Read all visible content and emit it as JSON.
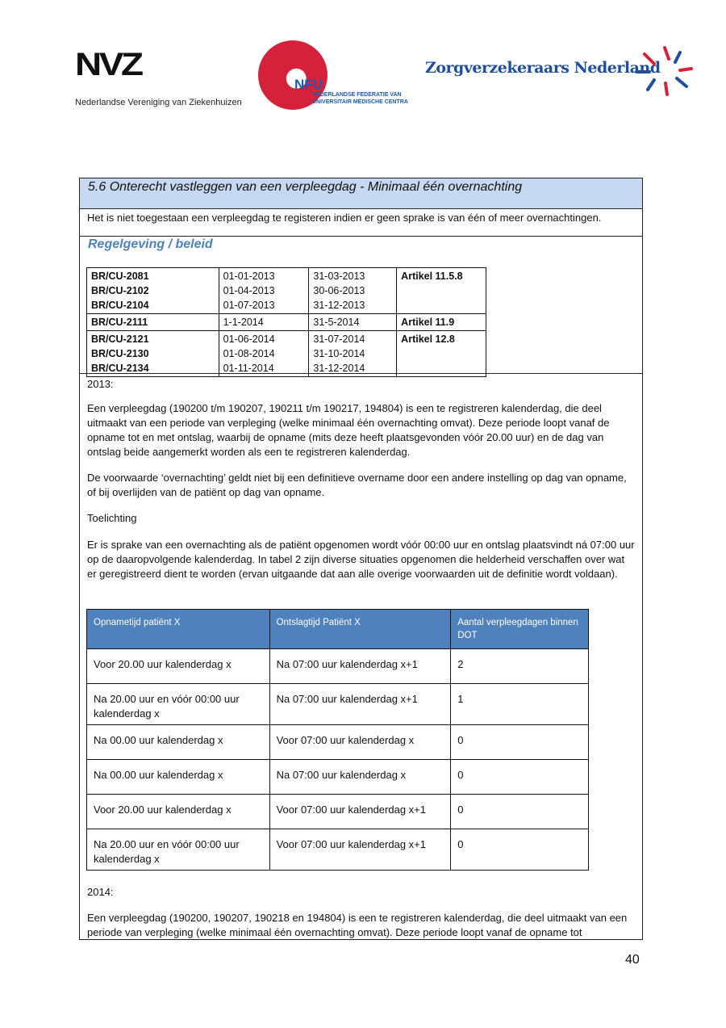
{
  "header": {
    "logos": {
      "nvz": "NVZ",
      "nvz_name": "Nederlandse Vereniging van Ziekenhuizen",
      "nfu": "NFU",
      "nfu_sub1": "NEDERLANDSE FEDERATIE VAN",
      "nfu_sub2": "UNIVERSITAIR MEDISCHE CENTRA",
      "zn": "Zorgverzekeraars Nederland"
    }
  },
  "colors": {
    "title_band": "#c6d9f1",
    "heading_blue": "#4f81bd",
    "table_header": "#4f81bd",
    "nfu_red": "#d5213a"
  },
  "section": {
    "title": "5.6 Onterecht vastleggen van een verpleegdag - Minimaal één overnachting",
    "intro": "Het is niet toegestaan een verpleegdag te registeren indien er geen sprake is van één of meer overnachtingen.",
    "regelgeving_heading": "Regelgeving / beleid",
    "br_rows": [
      {
        "codes": [
          "BR/CU-2081",
          "BR/CU-2102",
          "BR/CU-2104"
        ],
        "start": [
          "01-01-2013",
          "01-04-2013",
          "01-07-2013"
        ],
        "end": [
          "31-03-2013",
          "30-06-2013",
          "31-12-2013"
        ],
        "article": "Artikel 11.5.8"
      },
      {
        "codes": [
          "BR/CU-2111"
        ],
        "start": [
          "1-1-2014"
        ],
        "end": [
          "31-5-2014"
        ],
        "article": "Artikel 11.9"
      },
      {
        "codes": [
          "BR/CU-2121",
          "BR/CU-2130",
          "BR/CU-2134"
        ],
        "start": [
          "01-06-2014",
          "01-08-2014",
          "01-11-2014"
        ],
        "end": [
          "31-07-2014",
          "31-10-2014",
          "31-12-2014"
        ],
        "article": "Artikel 12.8"
      }
    ],
    "y2013_label": "2013:",
    "p1": "Een verpleegdag (190200 t/m 190207, 190211 t/m 190217, 194804) is een te registreren kalenderdag, die deel uitmaakt van een periode van verpleging (welke minimaal één overnachting omvat). Deze periode loopt vanaf de opname tot en met ontslag, waarbij de opname (mits deze heeft plaatsgevonden vóór 20.00 uur) en de dag van ontslag beide aangemerkt worden als een te registreren kalenderdag.",
    "p2": "De voorwaarde ‘overnachting’ geldt niet bij een definitieve overname door een andere instelling op dag van opname, of bij overlijden van de patiënt op dag van opname.",
    "toelichting": "Toelichting",
    "p3": "Er is sprake van een overnachting als de patiënt opgenomen wordt vóór 00:00 uur en ontslag plaatsvindt ná 07:00 uur op de daaropvolgende kalenderdag. In tabel 2 zijn diverse situaties opgenomen die helderheid verschaffen over wat er geregistreerd dient te worden (ervan uitgaande dat aan alle overige voorwaarden uit de definitie wordt voldaan).",
    "table": {
      "headers": [
        "Opnametijd patiënt X",
        "Ontslagtijd Patiënt X",
        "Aantal verpleegdagen binnen DOT"
      ],
      "rows": [
        [
          "Voor 20.00 uur kalenderdag x",
          "Na 07:00 uur kalenderdag x+1",
          "2"
        ],
        [
          "Na 20.00 uur en vóór 00:00 uur kalenderdag x",
          "Na 07:00 uur kalenderdag x+1",
          "1"
        ],
        [
          "Na 00.00 uur kalenderdag x",
          "Voor 07:00 uur kalenderdag x",
          "0"
        ],
        [
          "Na 00.00 uur kalenderdag x",
          "Na 07:00 uur kalenderdag x",
          "0"
        ],
        [
          "Voor 20.00 uur kalenderdag x",
          "Voor 07:00 uur kalenderdag x+1",
          "0"
        ],
        [
          "Na 20.00 uur en vóór 00:00 uur kalenderdag x",
          "Voor 07:00 uur kalenderdag x+1",
          "0"
        ]
      ]
    },
    "y2014_label": "2014:",
    "p4": "Een verpleegdag (190200, 190207, 190218 en 194804) is een te registreren kalenderdag, die deel uitmaakt van een periode van verpleging (welke minimaal één overnachting omvat). Deze periode loopt vanaf de opname tot"
  },
  "footer": {
    "page_number": "40"
  }
}
